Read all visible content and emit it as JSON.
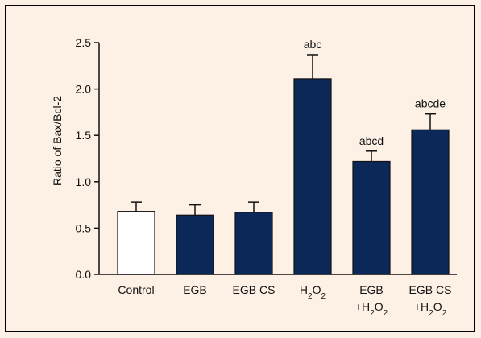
{
  "chart_data": {
    "type": "bar",
    "categories": [
      "Control",
      "EGB",
      "EGB CS",
      "H2O2",
      "EGB +H2O2",
      "EGB CS +H2O2"
    ],
    "category_labels": [
      [
        {
          "t": "Control"
        }
      ],
      [
        {
          "t": "EGB"
        }
      ],
      [
        {
          "t": "EGB CS"
        }
      ],
      [
        {
          "t": "H"
        },
        {
          "t": "2",
          "sub": true
        },
        {
          "t": "O"
        },
        {
          "t": "2",
          "sub": true
        }
      ],
      [
        {
          "t": "EGB"
        }
      ],
      [
        {
          "t": "EGB CS"
        }
      ]
    ],
    "category_labels_line2": [
      [],
      [],
      [],
      [],
      [
        {
          "t": "+H"
        },
        {
          "t": "2",
          "sub": true
        },
        {
          "t": "O"
        },
        {
          "t": "2",
          "sub": true
        }
      ],
      [
        {
          "t": "+H"
        },
        {
          "t": "2",
          "sub": true
        },
        {
          "t": "O"
        },
        {
          "t": "2",
          "sub": true
        }
      ]
    ],
    "values": [
      0.68,
      0.64,
      0.67,
      2.11,
      1.22,
      1.56
    ],
    "errors": [
      0.1,
      0.11,
      0.11,
      0.26,
      0.11,
      0.17
    ],
    "significance_labels": [
      "",
      "",
      "",
      "abc",
      "abcd",
      "abcde"
    ],
    "bar_colors": [
      "#ffffff",
      "#0c2859",
      "#0c2859",
      "#0c2859",
      "#0c2859",
      "#0c2859"
    ],
    "ylabel": "Ratio of Bax/Bcl-2",
    "xlabel": "",
    "ylim": [
      0.0,
      2.5
    ],
    "yticks": [
      "0.0",
      "0.5",
      "1.0",
      "1.5",
      "2.0",
      "2.5"
    ],
    "grid": false,
    "legend": "none"
  },
  "colors": {
    "background": "#fdf1e5",
    "bar_fill": "#0c2859",
    "control_fill": "#ffffff",
    "axis": "#111111"
  }
}
